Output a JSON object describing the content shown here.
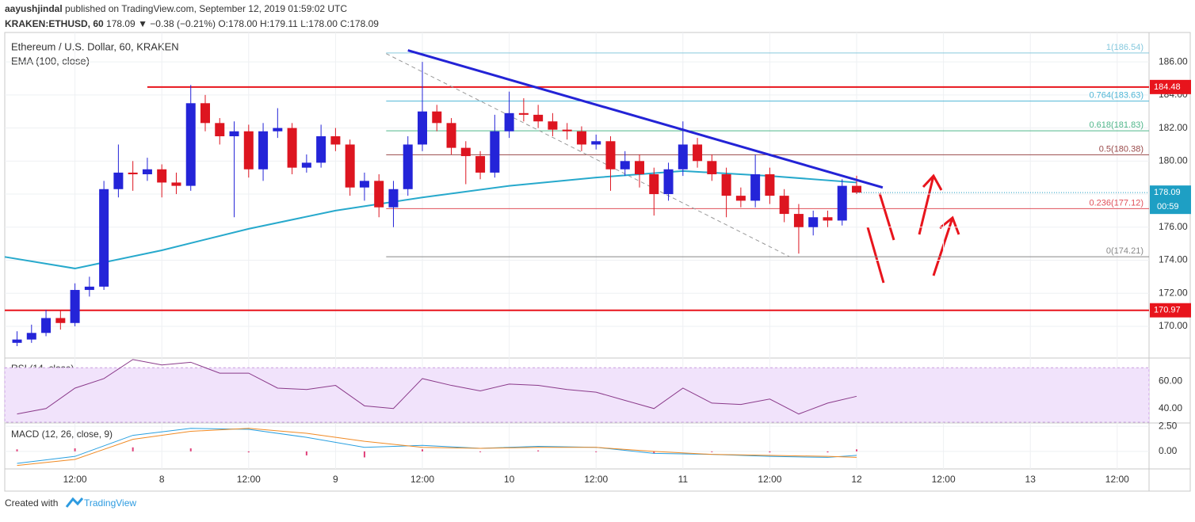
{
  "header": {
    "publisher": "aayushjindal",
    "published": "published on TradingView.com, September 12, 2019 01:59:02 UTC",
    "symbol": "KRAKEN:ETHUSD, 60",
    "quote": "178.09 ▼ −0.38 (−0.21%) O:178.00 H:179.11 L:178.00 C:178.09"
  },
  "footer": {
    "created": "Created with",
    "brand": "TradingView"
  },
  "chart_data": {
    "type": "candlestick",
    "title": "Ethereum / U.S. Dollar, 60, KRAKEN",
    "up_color": "#2424d8",
    "down_color": "#dd1520",
    "xlim": [
      -9.7,
      148.4
    ],
    "xticks": [
      {
        "value": 0,
        "label": "12:00"
      },
      {
        "value": 12,
        "label": "8"
      },
      {
        "value": 24,
        "label": "12:00"
      },
      {
        "value": 36,
        "label": "9"
      },
      {
        "value": 48,
        "label": "12:00"
      },
      {
        "value": 60,
        "label": "10"
      },
      {
        "value": 72,
        "label": "12:00"
      },
      {
        "value": 84,
        "label": "11"
      },
      {
        "value": 96,
        "label": "12:00"
      },
      {
        "value": 108,
        "label": "12"
      },
      {
        "value": 120,
        "label": "12:00"
      },
      {
        "value": 132,
        "label": "13"
      },
      {
        "value": 144,
        "label": "12:00"
      }
    ],
    "ylim": [
      168.08,
      187.78
    ],
    "yticks": [
      {
        "value": 170,
        "label": "170.00"
      },
      {
        "value": 172,
        "label": "172.00"
      },
      {
        "value": 174,
        "label": "174.00"
      },
      {
        "value": 176,
        "label": "176.00"
      },
      {
        "value": 178,
        "label": "178.00"
      },
      {
        "value": 180,
        "label": "180.00"
      },
      {
        "value": 182,
        "label": "182.00"
      },
      {
        "value": 184,
        "label": "184.00"
      },
      {
        "value": 186,
        "label": "186.00"
      }
    ],
    "x": [
      -8,
      -6,
      -4,
      -2,
      0,
      2,
      4,
      6,
      8,
      10,
      12,
      14,
      16,
      18,
      20,
      22,
      24,
      26,
      28,
      30,
      32,
      34,
      36,
      38,
      40,
      42,
      44,
      46,
      48,
      50,
      52,
      54,
      56,
      58,
      60,
      62,
      64,
      66,
      68,
      70,
      72,
      74,
      76,
      78,
      80,
      82,
      84,
      86,
      88,
      90,
      92,
      94,
      96,
      98,
      100,
      102,
      104,
      106,
      108
    ],
    "candles": [
      [
        169.0,
        169.7,
        168.8,
        169.2
      ],
      [
        169.2,
        170.1,
        169.0,
        169.6
      ],
      [
        169.6,
        171.0,
        169.4,
        170.5
      ],
      [
        170.5,
        171.0,
        169.8,
        170.2
      ],
      [
        170.2,
        172.6,
        170.0,
        172.2
      ],
      [
        172.2,
        173.0,
        171.8,
        172.4
      ],
      [
        172.4,
        178.8,
        172.2,
        178.3
      ],
      [
        178.3,
        181.0,
        177.8,
        179.3
      ],
      [
        179.3,
        180.0,
        178.2,
        179.2
      ],
      [
        179.2,
        180.2,
        178.8,
        179.5
      ],
      [
        179.5,
        179.8,
        177.8,
        178.7
      ],
      [
        178.7,
        179.3,
        178.0,
        178.5
      ],
      [
        178.5,
        184.6,
        178.2,
        183.5
      ],
      [
        183.5,
        184.0,
        181.8,
        182.3
      ],
      [
        182.3,
        182.6,
        181.0,
        181.5
      ],
      [
        181.5,
        182.4,
        176.6,
        181.8
      ],
      [
        181.8,
        182.2,
        179.0,
        179.5
      ],
      [
        179.5,
        182.3,
        178.8,
        181.8
      ],
      [
        181.8,
        183.2,
        181.4,
        182.0
      ],
      [
        182.0,
        182.3,
        179.2,
        179.6
      ],
      [
        179.6,
        180.4,
        179.3,
        179.9
      ],
      [
        179.9,
        182.2,
        179.6,
        181.5
      ],
      [
        181.5,
        182.0,
        180.6,
        181.0
      ],
      [
        181.0,
        181.3,
        177.9,
        178.4
      ],
      [
        178.4,
        179.3,
        177.6,
        178.8
      ],
      [
        178.8,
        179.2,
        176.6,
        177.2
      ],
      [
        177.2,
        178.8,
        176.0,
        178.3
      ],
      [
        178.3,
        181.5,
        177.9,
        181.0
      ],
      [
        181.0,
        186.0,
        180.6,
        183.0
      ],
      [
        183.0,
        183.4,
        181.8,
        182.3
      ],
      [
        182.3,
        182.6,
        180.4,
        180.8
      ],
      [
        180.8,
        181.2,
        178.6,
        180.3
      ],
      [
        180.3,
        180.6,
        178.9,
        179.3
      ],
      [
        179.3,
        182.8,
        179.0,
        181.8
      ],
      [
        181.8,
        184.2,
        181.4,
        182.9
      ],
      [
        182.9,
        183.8,
        182.4,
        182.8
      ],
      [
        182.8,
        183.4,
        182.0,
        182.4
      ],
      [
        182.4,
        182.9,
        181.5,
        181.9
      ],
      [
        181.9,
        182.3,
        181.3,
        181.8
      ],
      [
        181.8,
        182.1,
        180.6,
        181.0
      ],
      [
        181.0,
        181.6,
        180.7,
        181.2
      ],
      [
        181.2,
        181.5,
        178.2,
        179.5
      ],
      [
        179.5,
        180.6,
        179.1,
        180.0
      ],
      [
        180.0,
        180.4,
        178.4,
        179.2
      ],
      [
        179.2,
        179.6,
        176.7,
        178.0
      ],
      [
        178.0,
        179.9,
        177.6,
        179.5
      ],
      [
        179.5,
        182.4,
        179.1,
        181.0
      ],
      [
        181.0,
        181.4,
        179.6,
        180.0
      ],
      [
        180.0,
        180.4,
        178.8,
        179.2
      ],
      [
        179.2,
        179.6,
        176.6,
        177.9
      ],
      [
        177.9,
        178.4,
        177.2,
        177.6
      ],
      [
        177.6,
        180.4,
        177.2,
        179.2
      ],
      [
        179.2,
        179.6,
        177.4,
        177.9
      ],
      [
        177.9,
        178.3,
        176.3,
        176.8
      ],
      [
        176.8,
        177.4,
        174.4,
        176.0
      ],
      [
        176.0,
        177.0,
        175.5,
        176.6
      ],
      [
        176.6,
        177.0,
        176.0,
        176.4
      ],
      [
        176.4,
        178.9,
        176.1,
        178.5
      ],
      [
        178.5,
        179.11,
        178.0,
        178.09
      ]
    ],
    "ema": {
      "name": "EMA (100, close)",
      "color": "#27a9cc",
      "x": [
        -9.7,
        0,
        12,
        24,
        36,
        48,
        60,
        72,
        84,
        96,
        108
      ],
      "values": [
        174.2,
        173.5,
        174.6,
        175.9,
        177.0,
        177.8,
        178.5,
        179.0,
        179.4,
        179.1,
        178.7
      ]
    },
    "last_price": 178.09,
    "countdown": "00:59",
    "last_color": "#1e9fc4",
    "levels": [
      {
        "value": 184.48,
        "start": 10,
        "color": "#e8141c"
      },
      {
        "value": 170.97,
        "start": -9.7,
        "color": "#e8141c"
      }
    ],
    "fib": {
      "start": 43,
      "levels": [
        {
          "value": 186.54,
          "label": "1(186.54)",
          "color": "#86c9de"
        },
        {
          "value": 183.63,
          "label": "0.764(183.63)",
          "color": "#4fb6d6"
        },
        {
          "value": 181.83,
          "label": "0.618(181.83)",
          "color": "#4fb68a"
        },
        {
          "value": 180.38,
          "label": "0.5(180.38)",
          "color": "#9a4a4a"
        },
        {
          "value": 177.12,
          "label": "0.236(177.12)",
          "color": "#e0505a"
        },
        {
          "value": 174.21,
          "label": "0(174.21)",
          "color": "#888888"
        }
      ]
    },
    "trendline": {
      "color": "#2323d6",
      "x": [
        46,
        111.6
      ],
      "values": [
        186.7,
        178.4
      ]
    },
    "diagonal": {
      "color": "#999999",
      "x": [
        43,
        98.8
      ],
      "values": [
        186.5,
        174.2
      ]
    },
    "rsi": {
      "title": "RSI (14, close)",
      "color": "#8a3a8a",
      "band": [
        30,
        70
      ],
      "ylim": [
        29.4,
        77.1
      ],
      "yticks": [
        {
          "value": 40,
          "label": "40.00"
        },
        {
          "value": 60,
          "label": "60.00"
        }
      ],
      "x": [
        -8,
        -4,
        0,
        4,
        8,
        12,
        16,
        20,
        24,
        28,
        32,
        36,
        40,
        44,
        48,
        52,
        56,
        60,
        64,
        68,
        72,
        76,
        80,
        84,
        88,
        92,
        96,
        100,
        104,
        108
      ],
      "values": [
        36,
        40,
        55,
        62,
        76,
        72,
        74,
        66,
        66,
        55,
        54,
        57,
        42,
        40,
        62,
        57,
        53,
        58,
        57,
        54,
        52,
        46,
        40,
        55,
        44,
        43,
        47,
        36,
        44,
        49
      ]
    },
    "macd": {
      "title": "MACD (12, 26, close, 9)",
      "ylim": [
        -1.75,
        2.83
      ],
      "yticks": [
        {
          "value": 2.5,
          "label": "2.50"
        },
        {
          "value": 0,
          "label": "0.00"
        }
      ],
      "x": [
        -8,
        0,
        8,
        16,
        24,
        32,
        40,
        48,
        56,
        64,
        72,
        80,
        88,
        96,
        104,
        108
      ],
      "macd": {
        "color": "#2aa0e0",
        "values": [
          -1.2,
          -0.5,
          1.6,
          2.3,
          2.2,
          1.4,
          0.4,
          0.6,
          0.3,
          0.5,
          0.4,
          -0.2,
          -0.3,
          -0.5,
          -0.6,
          -0.4
        ]
      },
      "signal": {
        "color": "#f08a24",
        "values": [
          -1.4,
          -0.8,
          1.2,
          2.0,
          2.3,
          1.8,
          1.0,
          0.4,
          0.3,
          0.4,
          0.4,
          0.0,
          -0.3,
          -0.4,
          -0.5,
          -0.6
        ]
      },
      "hist": {
        "color": "#e0407a",
        "values": [
          0.2,
          0.3,
          0.4,
          0.3,
          -0.1,
          -0.4,
          -0.6,
          0.2,
          0.0,
          0.1,
          0.0,
          -0.2,
          0.0,
          -0.1,
          -0.1,
          0.2
        ]
      }
    }
  }
}
